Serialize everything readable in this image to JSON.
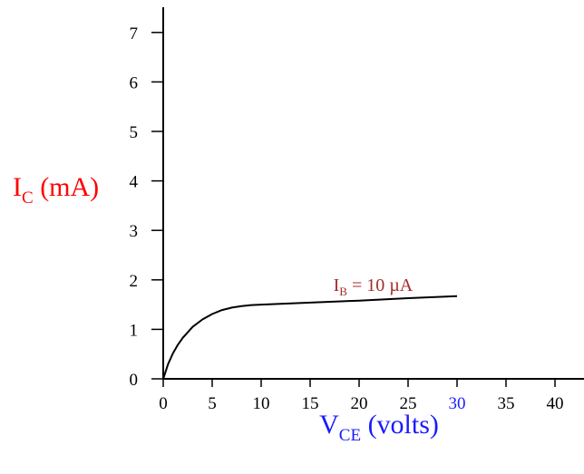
{
  "chart_data": {
    "type": "line",
    "title": "",
    "xlabel": {
      "main": "V",
      "sub": "CE",
      "suffix": " (volts)"
    },
    "ylabel": {
      "main": "I",
      "sub": "C",
      "suffix": " (mA)"
    },
    "xlim": [
      0,
      42
    ],
    "ylim": [
      0,
      7.5
    ],
    "x_ticks": [
      "0",
      "5",
      "10",
      "15",
      "20",
      "25",
      "30",
      "35",
      "40"
    ],
    "y_ticks": [
      "0",
      "1",
      "2",
      "3",
      "4",
      "5",
      "6",
      "7"
    ],
    "highlighted_x_tick": "30",
    "grid": false,
    "series": [
      {
        "name": "I_B = 10 µA",
        "x": [
          0,
          0.5,
          1,
          1.5,
          2,
          3,
          4,
          5,
          6,
          7,
          8,
          9,
          10,
          15,
          20,
          25,
          30
        ],
        "y": [
          0,
          0.3,
          0.52,
          0.69,
          0.83,
          1.05,
          1.2,
          1.31,
          1.39,
          1.44,
          1.47,
          1.49,
          1.5,
          1.54,
          1.58,
          1.63,
          1.67
        ]
      }
    ],
    "annotations": [
      {
        "text_main": "I",
        "text_sub": "B",
        "text_rest": " = 10 µA",
        "x": 17,
        "y": 1.85
      }
    ]
  },
  "colors": {
    "axis_label": "#ff0000",
    "x_label": "#1a1aff",
    "highlight_tick": "#1a1aff",
    "annotation": "#a52a2a",
    "axis": "#000000",
    "curve": "#000000"
  }
}
